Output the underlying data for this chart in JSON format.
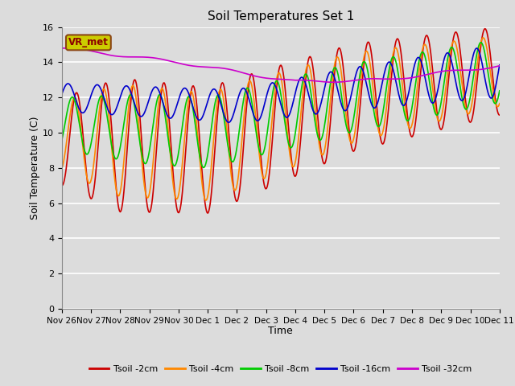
{
  "title": "Soil Temperatures Set 1",
  "xlabel": "Time",
  "ylabel": "Soil Temperature (C)",
  "ylim": [
    0,
    16
  ],
  "yticks": [
    0,
    2,
    4,
    6,
    8,
    10,
    12,
    14,
    16
  ],
  "plot_bg_color": "#dcdcdc",
  "fig_bg_color": "#dcdcdc",
  "grid_color": "#ffffff",
  "line_colors": {
    "Tsoil -2cm": "#cc0000",
    "Tsoil -4cm": "#ff8800",
    "Tsoil -8cm": "#00cc00",
    "Tsoil -16cm": "#0000cc",
    "Tsoil -32cm": "#cc00cc"
  },
  "annotation_text": "VR_met",
  "annotation_box_facecolor": "#cccc00",
  "annotation_box_edgecolor": "#8B4513",
  "annotation_text_color": "#8B0000",
  "xtick_labels": [
    "Nov 26",
    "Nov 27",
    "Nov 28",
    "Nov 29",
    "Nov 30",
    "Dec 1",
    "Dec 2",
    "Dec 3",
    "Dec 4",
    "Dec 5",
    "Dec 6",
    "Dec 7",
    "Dec 8",
    "Dec 9",
    "Dec 10",
    "Dec 11"
  ],
  "xtick_positions": [
    0,
    1,
    2,
    3,
    4,
    5,
    6,
    7,
    8,
    9,
    10,
    11,
    12,
    13,
    14,
    15
  ],
  "x_start": 0,
  "x_end": 15,
  "n_points": 600
}
